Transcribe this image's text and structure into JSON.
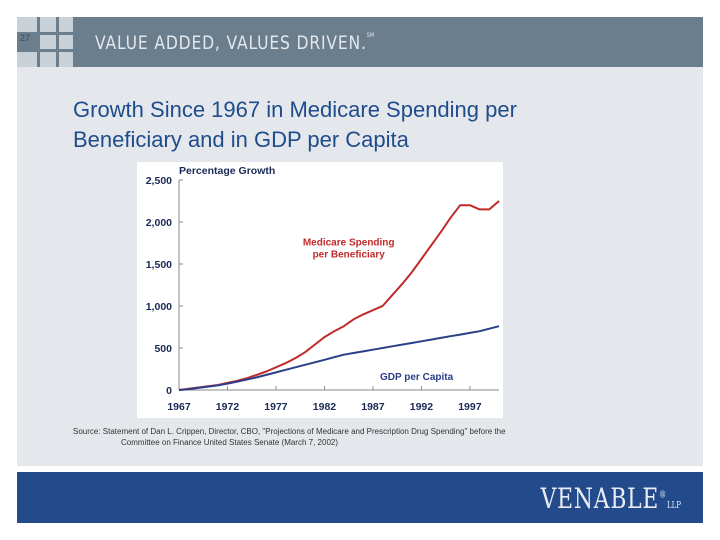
{
  "slide": {
    "number": "27",
    "tagline": "VALUE ADDED, VALUES DRIVEN.",
    "tagline_mark": "SM",
    "title_line1": "Growth Since 1967 in Medicare Spending per",
    "title_line2": "Beneficiary and in GDP per Capita",
    "source_line1": "Source: Statement of Dan L. Crippen, Director, CBO, \"Projections of Medicare and Prescription Drug Spending\" before the",
    "source_line2": "Committee on Finance United States Senate (March 7, 2002)",
    "logo": "VENABLE",
    "logo_mark": "®",
    "logo_suffix": "LLP"
  },
  "chart_data": {
    "type": "line",
    "title": "Percentage Growth",
    "xlabel": "",
    "ylabel": "Percentage Growth",
    "xlim": [
      1967,
      2000
    ],
    "ylim": [
      0,
      2500
    ],
    "x_ticks": [
      "1967",
      "1972",
      "1977",
      "1982",
      "1987",
      "1992",
      "1997"
    ],
    "y_ticks": [
      "0",
      "500",
      "1,000",
      "1,500",
      "2,000",
      "2,500"
    ],
    "x": [
      1967,
      1968,
      1969,
      1970,
      1971,
      1972,
      1973,
      1974,
      1975,
      1976,
      1977,
      1978,
      1979,
      1980,
      1981,
      1982,
      1983,
      1984,
      1985,
      1986,
      1987,
      1988,
      1989,
      1990,
      1991,
      1992,
      1993,
      1994,
      1995,
      1996,
      1997,
      1998,
      1999,
      2000
    ],
    "series": [
      {
        "name": "Medicare Spending per Beneficiary",
        "label_line1": "Medicare Spending",
        "label_line2": "per Beneficiary",
        "color": "#c22a2a",
        "values": [
          0,
          15,
          30,
          45,
          60,
          85,
          110,
          140,
          180,
          220,
          270,
          320,
          380,
          450,
          540,
          630,
          700,
          760,
          840,
          900,
          950,
          1000,
          1130,
          1260,
          1400,
          1560,
          1720,
          1880,
          2050,
          2200,
          2200,
          2150,
          2150,
          2250
        ]
      },
      {
        "name": "GDP per Capita",
        "label_line1": "GDP per Capita",
        "label_line2": "",
        "color": "#2b3f87",
        "values": [
          0,
          10,
          25,
          40,
          55,
          75,
          100,
          125,
          150,
          180,
          210,
          240,
          270,
          300,
          330,
          360,
          390,
          420,
          440,
          460,
          480,
          500,
          520,
          540,
          560,
          580,
          600,
          620,
          640,
          660,
          680,
          700,
          730,
          760
        ]
      }
    ]
  }
}
